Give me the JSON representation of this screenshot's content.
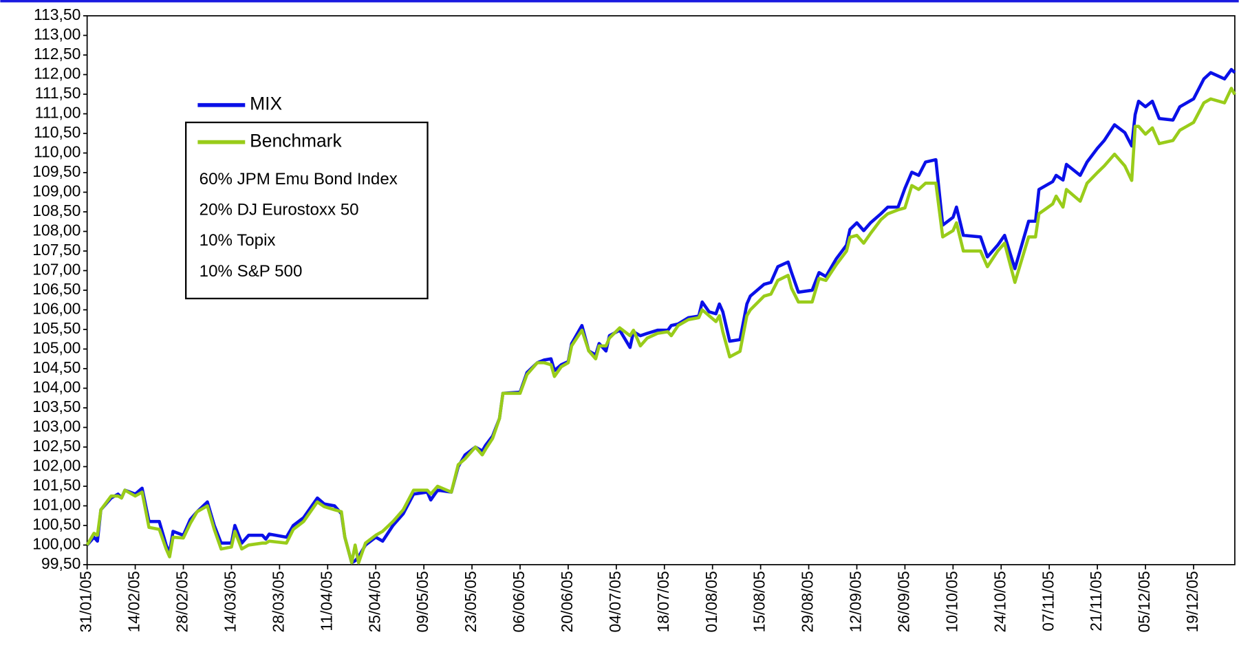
{
  "chart_data": {
    "type": "line",
    "x": [
      "31/01/05",
      "02/02/05",
      "03/02/05",
      "04/02/05",
      "07/02/05",
      "09/02/05",
      "10/02/05",
      "11/02/05",
      "14/02/05",
      "16/02/05",
      "18/02/05",
      "21/02/05",
      "23/02/05",
      "24/02/05",
      "25/02/05",
      "28/02/05",
      "02/03/05",
      "04/03/05",
      "07/03/05",
      "09/03/05",
      "11/03/05",
      "14/03/05",
      "15/03/05",
      "17/03/05",
      "19/03/05",
      "23/03/05",
      "24/03/05",
      "25/03/05",
      "30/03/05",
      "01/04/05",
      "04/04/05",
      "08/04/05",
      "10/04/05",
      "13/04/05",
      "15/04/05",
      "16/04/05",
      "18/04/05",
      "19/04/05",
      "20/04/05",
      "22/04/05",
      "25/04/05",
      "27/04/05",
      "30/04/05",
      "03/05/05",
      "06/05/05",
      "10/05/05",
      "11/05/05",
      "13/05/05",
      "17/05/05",
      "19/05/05",
      "21/05/05",
      "24/05/05",
      "26/05/05",
      "27/05/05",
      "29/05/05",
      "31/05/05",
      "01/06/05",
      "06/06/05",
      "08/06/05",
      "11/06/05",
      "13/06/05",
      "15/06/05",
      "16/06/05",
      "18/06/05",
      "20/06/05",
      "21/06/05",
      "24/06/05",
      "26/06/05",
      "28/06/05",
      "29/06/05",
      "01/07/05",
      "02/07/05",
      "05/07/05",
      "08/07/05",
      "09/07/05",
      "11/07/05",
      "13/07/05",
      "16/07/05",
      "19/07/05",
      "20/07/05",
      "22/07/05",
      "25/07/05",
      "28/07/05",
      "29/07/05",
      "31/07/05",
      "02/08/05",
      "03/08/05",
      "04/08/05",
      "06/08/05",
      "09/08/05",
      "11/08/05",
      "12/08/05",
      "16/08/05",
      "18/08/05",
      "20/08/05",
      "23/08/05",
      "24/08/05",
      "26/08/05",
      "30/08/05",
      "01/09/05",
      "03/09/05",
      "06/09/05",
      "09/09/05",
      "10/09/05",
      "12/09/05",
      "14/09/05",
      "16/09/05",
      "19/09/05",
      "21/09/05",
      "24/09/05",
      "26/09/05",
      "28/09/05",
      "30/09/05",
      "02/10/05",
      "05/10/05",
      "07/10/05",
      "10/10/05",
      "11/10/05",
      "13/10/05",
      "18/10/05",
      "20/10/05",
      "23/10/05",
      "25/10/05",
      "28/10/05",
      "01/11/05",
      "03/11/05",
      "04/11/05",
      "08/11/05",
      "09/11/05",
      "11/11/05",
      "12/11/05",
      "16/11/05",
      "18/11/05",
      "21/11/05",
      "23/11/05",
      "26/11/05",
      "29/11/05",
      "01/12/05",
      "02/12/05",
      "03/12/05",
      "05/12/05",
      "07/12/05",
      "09/12/05",
      "13/12/05",
      "15/12/05",
      "17/12/05",
      "19/12/05",
      "22/12/05",
      "24/12/05",
      "28/12/05",
      "30/12/05",
      "31/12/05"
    ],
    "series": [
      {
        "name": "MIX",
        "color": "#0a10e8",
        "values": [
          100.0,
          100.2,
          100.1,
          100.9,
          101.2,
          101.3,
          101.2,
          101.4,
          101.3,
          101.45,
          100.6,
          100.6,
          100.0,
          99.8,
          100.35,
          100.25,
          100.65,
          100.85,
          101.1,
          100.5,
          100.05,
          100.05,
          100.5,
          100.05,
          100.25,
          100.25,
          100.15,
          100.28,
          100.2,
          100.5,
          100.7,
          101.2,
          101.05,
          101.0,
          100.8,
          100.2,
          99.55,
          99.6,
          99.7,
          100.0,
          100.2,
          100.1,
          100.5,
          100.8,
          101.3,
          101.35,
          101.15,
          101.4,
          101.35,
          102.0,
          102.3,
          102.5,
          102.4,
          102.55,
          102.78,
          103.23,
          103.87,
          103.9,
          104.4,
          104.65,
          104.72,
          104.75,
          104.45,
          104.6,
          104.68,
          105.14,
          105.6,
          104.95,
          104.85,
          105.14,
          104.95,
          105.34,
          105.48,
          105.04,
          105.44,
          105.34,
          105.4,
          105.48,
          105.48,
          105.6,
          105.64,
          105.8,
          105.84,
          106.2,
          105.95,
          105.9,
          106.15,
          105.95,
          105.2,
          105.24,
          106.15,
          106.35,
          106.65,
          106.7,
          107.1,
          107.22,
          106.95,
          106.45,
          106.5,
          106.95,
          106.85,
          107.3,
          107.65,
          108.05,
          108.22,
          108.02,
          108.22,
          108.45,
          108.62,
          108.62,
          109.1,
          109.51,
          109.43,
          109.77,
          109.83,
          108.16,
          108.36,
          108.62,
          107.9,
          107.86,
          107.35,
          107.65,
          107.9,
          107.05,
          108.26,
          108.26,
          109.07,
          109.27,
          109.43,
          109.31,
          109.71,
          109.43,
          109.77,
          110.12,
          110.32,
          110.72,
          110.52,
          110.18,
          110.98,
          111.32,
          111.18,
          111.32,
          110.88,
          110.84,
          111.18,
          111.28,
          111.38,
          111.89,
          112.05,
          111.89,
          112.13,
          112.05
        ]
      },
      {
        "name": "Benchmark",
        "color": "#99cc1a",
        "values": [
          100.0,
          100.3,
          100.25,
          100.9,
          101.25,
          101.25,
          101.2,
          101.4,
          101.25,
          101.35,
          100.45,
          100.4,
          99.9,
          99.7,
          100.2,
          100.18,
          100.55,
          100.85,
          101.0,
          100.4,
          99.9,
          99.95,
          100.35,
          99.9,
          100.0,
          100.05,
          100.05,
          100.1,
          100.05,
          100.4,
          100.6,
          101.1,
          100.98,
          100.9,
          100.85,
          100.2,
          99.55,
          100.0,
          99.55,
          100.05,
          100.25,
          100.35,
          100.6,
          100.9,
          101.4,
          101.4,
          101.3,
          101.5,
          101.35,
          102.05,
          102.2,
          102.5,
          102.3,
          102.45,
          102.72,
          103.23,
          103.87,
          103.87,
          104.35,
          104.65,
          104.65,
          104.6,
          104.3,
          104.55,
          104.65,
          105.08,
          105.48,
          104.95,
          104.75,
          105.08,
          105.08,
          105.28,
          105.54,
          105.34,
          105.48,
          105.08,
          105.28,
          105.4,
          105.44,
          105.34,
          105.6,
          105.75,
          105.8,
          106.0,
          105.85,
          105.7,
          105.85,
          105.44,
          104.8,
          104.94,
          105.85,
          106.0,
          106.35,
          106.4,
          106.75,
          106.88,
          106.55,
          106.2,
          106.2,
          106.8,
          106.75,
          107.15,
          107.5,
          107.85,
          107.9,
          107.7,
          107.95,
          108.3,
          108.45,
          108.55,
          108.6,
          109.17,
          109.07,
          109.23,
          109.23,
          107.86,
          108.02,
          108.22,
          107.5,
          107.5,
          107.1,
          107.5,
          107.7,
          106.7,
          107.86,
          107.86,
          108.45,
          108.7,
          108.9,
          108.62,
          109.07,
          108.77,
          109.23,
          109.5,
          109.67,
          109.97,
          109.67,
          109.3,
          110.68,
          110.68,
          110.48,
          110.64,
          110.24,
          110.32,
          110.58,
          110.68,
          110.78,
          111.28,
          111.38,
          111.28,
          111.65,
          111.49
        ]
      }
    ],
    "annotations": [
      "60% JPM Emu Bond Index",
      "20% DJ Eurostoxx 50",
      "10% Topix",
      "10% S&P 500"
    ],
    "xlim": [
      "31/01/05",
      "31/12/05"
    ],
    "xticks": [
      "31/01/05",
      "14/02/05",
      "28/02/05",
      "14/03/05",
      "28/03/05",
      "11/04/05",
      "25/04/05",
      "09/05/05",
      "23/05/05",
      "06/06/05",
      "20/06/05",
      "04/07/05",
      "18/07/05",
      "01/08/05",
      "15/08/05",
      "29/08/05",
      "12/09/05",
      "26/09/05",
      "10/10/05",
      "24/10/05",
      "07/11/05",
      "21/11/05",
      "05/12/05",
      "19/12/05"
    ],
    "ylim": [
      99.5,
      113.5
    ],
    "yticks": [
      {
        "value": 99.5,
        "label": "99,50"
      },
      {
        "value": 100,
        "label": "100,00"
      },
      {
        "value": 100.5,
        "label": "100,50"
      },
      {
        "value": 101,
        "label": "101,00"
      },
      {
        "value": 101.5,
        "label": "101,50"
      },
      {
        "value": 102,
        "label": "102,00"
      },
      {
        "value": 102.5,
        "label": "102,50"
      },
      {
        "value": 103,
        "label": "103,00"
      },
      {
        "value": 103.5,
        "label": "103,50"
      },
      {
        "value": 104,
        "label": "104,00"
      },
      {
        "value": 104.5,
        "label": "104,50"
      },
      {
        "value": 105,
        "label": "105,00"
      },
      {
        "value": 105.5,
        "label": "105,50"
      },
      {
        "value": 106,
        "label": "106,00"
      },
      {
        "value": 106.5,
        "label": "106,50"
      },
      {
        "value": 107,
        "label": "107,00"
      },
      {
        "value": 107.5,
        "label": "107,50"
      },
      {
        "value": 108,
        "label": "108,00"
      },
      {
        "value": 108.5,
        "label": "108,50"
      },
      {
        "value": 109,
        "label": "109,00"
      },
      {
        "value": 109.5,
        "label": "109,50"
      },
      {
        "value": 110,
        "label": "110,00"
      },
      {
        "value": 110.5,
        "label": "110,50"
      },
      {
        "value": 111,
        "label": "111,00"
      },
      {
        "value": 111.5,
        "label": "111,50"
      },
      {
        "value": 112,
        "label": "112,00"
      },
      {
        "value": 112.5,
        "label": "112,50"
      },
      {
        "value": 113,
        "label": "113,00"
      },
      {
        "value": 113.5,
        "label": "113,50"
      }
    ],
    "grid": false
  }
}
